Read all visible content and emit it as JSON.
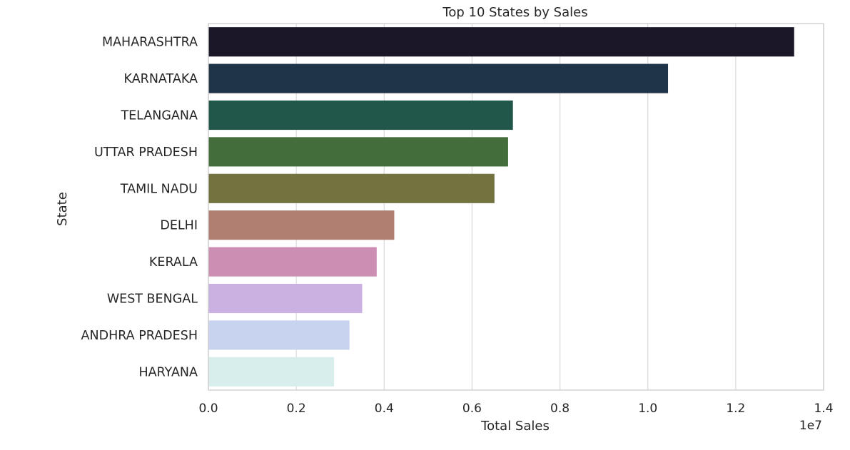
{
  "chart_data": {
    "type": "bar",
    "orientation": "horizontal",
    "title": "Top 10 States by Sales",
    "xlabel": "Total Sales",
    "ylabel": "State",
    "xlim": [
      0,
      1.4
    ],
    "x_offset_label": "1e7",
    "x_ticks": [
      "0.0",
      "0.2",
      "0.4",
      "0.6",
      "0.8",
      "1.0",
      "1.2",
      "1.4"
    ],
    "grid": true,
    "categories": [
      "MAHARASHTRA",
      "KARNATAKA",
      "TELANGANA",
      "UTTAR PRADESH",
      "TAMIL NADU",
      "DELHI",
      "KERALA",
      "WEST BENGAL",
      "ANDHRA PRADESH",
      "HARYANA"
    ],
    "values": [
      1.333,
      1.046,
      0.693,
      0.682,
      0.651,
      0.423,
      0.383,
      0.35,
      0.321,
      0.286
    ],
    "colors": [
      "#1b1628",
      "#203449",
      "#20574a",
      "#446d3c",
      "#737340",
      "#b07f71",
      "#cc8eb2",
      "#cbb0e2",
      "#c7d3ef",
      "#d8eeed"
    ]
  }
}
